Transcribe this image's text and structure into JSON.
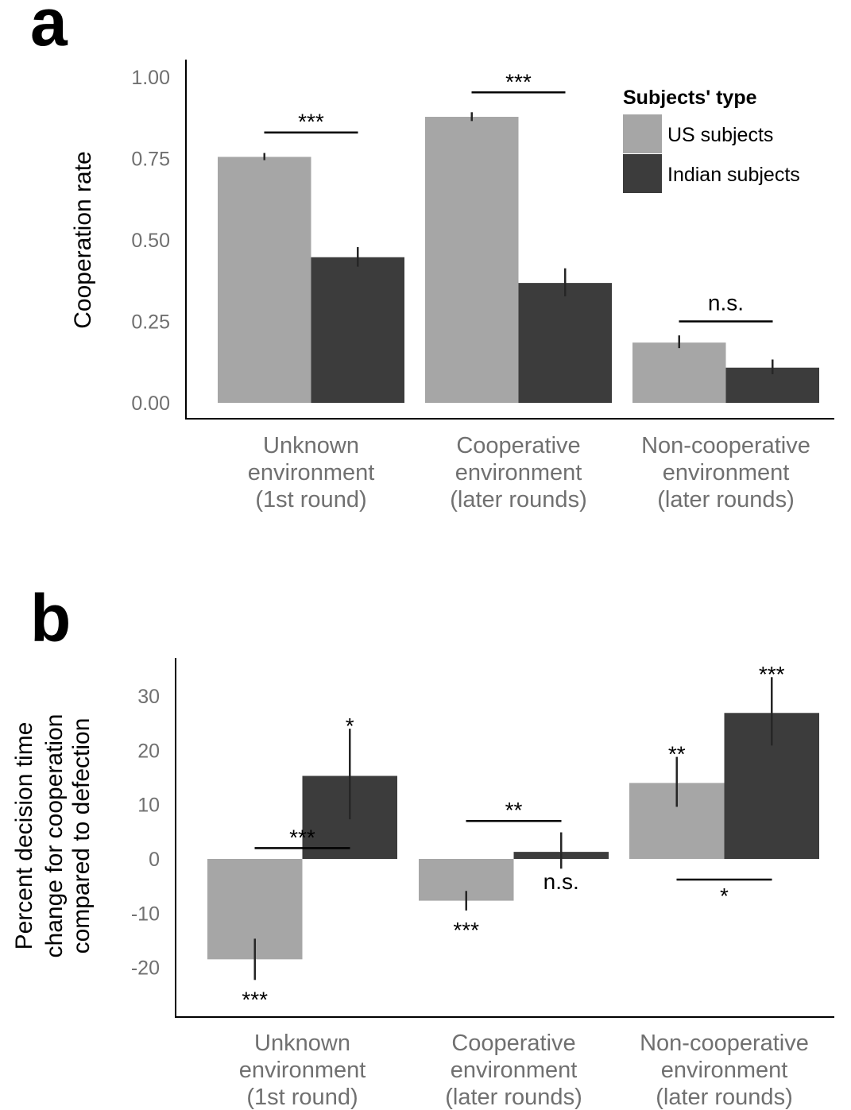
{
  "chart_data": [
    {
      "panel": "a",
      "type": "bar",
      "ylabel": "Cooperation rate",
      "xlabel": "",
      "ylim": [
        0,
        1.05
      ],
      "yticks": [
        "1.00",
        "0.75",
        "0.50",
        "0.25",
        "0.00"
      ],
      "ytick_values": [
        1.0,
        0.75,
        0.5,
        0.25,
        0.0
      ],
      "categories": [
        [
          "Unknown",
          "environment",
          "(1st round)"
        ],
        [
          "Cooperative",
          "environment",
          "(later rounds)"
        ],
        [
          "Non-cooperative",
          "environment",
          "(later rounds)"
        ]
      ],
      "series": [
        {
          "name": "US subjects",
          "color": "#a6a6a6",
          "values": [
            0.755,
            0.878,
            0.185
          ],
          "err_low": [
            0.745,
            0.865,
            0.168
          ],
          "err_high": [
            0.767,
            0.892,
            0.207
          ]
        },
        {
          "name": "Indian subjects",
          "color": "#3c3c3c",
          "values": [
            0.447,
            0.368,
            0.108
          ],
          "err_low": [
            0.418,
            0.327,
            0.088
          ],
          "err_high": [
            0.478,
            0.413,
            0.133
          ]
        }
      ],
      "comparisons": [
        {
          "category": 0,
          "label": "***",
          "y": 0.83
        },
        {
          "category": 1,
          "label": "***",
          "y": 0.953
        },
        {
          "category": 2,
          "label": "n.s.",
          "y": 0.25
        }
      ],
      "legend": {
        "title": "Subjects' type",
        "position": "top-right"
      },
      "grid": false
    },
    {
      "panel": "b",
      "type": "bar",
      "ylabel": [
        "Percent decision time",
        "change for cooperation",
        "compared to defection"
      ],
      "xlabel": "",
      "ylim": [
        -29,
        37
      ],
      "yticks": [
        "30",
        "20",
        "10",
        "0",
        "-10",
        "-20"
      ],
      "ytick_values": [
        30,
        20,
        10,
        0,
        -10,
        -20
      ],
      "categories": [
        [
          "Unknown",
          "environment",
          "(1st round)"
        ],
        [
          "Cooperative",
          "environment",
          "(later rounds)"
        ],
        [
          "Non-cooperative",
          "environment",
          "(later rounds)"
        ]
      ],
      "series": [
        {
          "name": "US subjects",
          "color": "#a6a6a6",
          "values": [
            -18.5,
            -7.7,
            14.0
          ],
          "err_low": [
            -22.3,
            -9.5,
            9.6
          ],
          "err_high": [
            -14.7,
            -5.9,
            18.8
          ]
        },
        {
          "name": "Indian subjects",
          "color": "#3c3c3c",
          "values": [
            15.3,
            1.3,
            26.9
          ],
          "err_low": [
            7.3,
            -1.8,
            20.9
          ],
          "err_high": [
            24.0,
            4.9,
            33.5
          ]
        }
      ],
      "bar_labels": [
        [
          {
            "label": "***",
            "pos": "below"
          },
          {
            "label": "***",
            "pos": "below"
          },
          {
            "label": "**",
            "pos": "above"
          }
        ],
        [
          {
            "label": "*",
            "pos": "above"
          },
          {
            "label": "n.s.",
            "pos": "below"
          },
          {
            "label": "***",
            "pos": "above"
          }
        ]
      ],
      "comparisons": [
        {
          "category": 0,
          "label": "***",
          "y": 2.0,
          "label_pos": "above"
        },
        {
          "category": 1,
          "label": "**",
          "y": 7.0,
          "label_pos": "above"
        },
        {
          "category": 2,
          "label": "*",
          "y": -3.8,
          "label_pos": "below"
        }
      ],
      "grid": false
    }
  ]
}
